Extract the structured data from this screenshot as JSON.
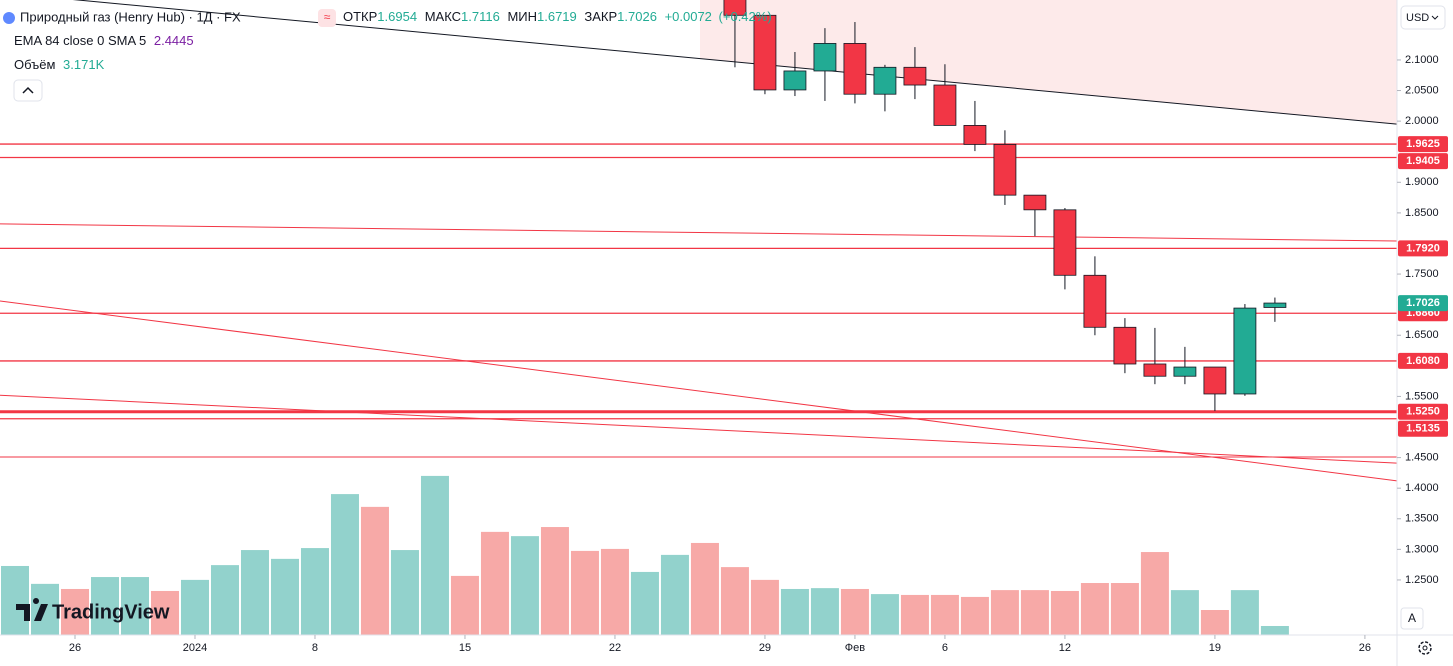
{
  "header": {
    "title": "Природный газ (Henry Hub) · 1Д · FX",
    "open_label": "ОТКР",
    "high_label": "МАКС",
    "low_label": "МИН",
    "close_label": "ЗАКР",
    "change": "+0.0072",
    "change_pct": "(+0.42%)"
  },
  "indicator": {
    "label": "EMA 84 close 0 SMA 5",
    "value": 2.4445
  },
  "volume_legend": {
    "label": "Объём",
    "value": "3.171K"
  },
  "currency": "USD",
  "auto_label": "A",
  "logo": "TradingView",
  "chart_data": {
    "type": "candlestick",
    "xlim": [
      -0.5,
      46.07
    ],
    "xticks": [
      {
        "value": 2,
        "label": "26"
      },
      {
        "value": 6,
        "label": "2024"
      },
      {
        "value": 10,
        "label": "8"
      },
      {
        "value": 15,
        "label": "15"
      },
      {
        "value": 20,
        "label": "22"
      },
      {
        "value": 25,
        "label": "29"
      },
      {
        "value": 28,
        "label": "Фев"
      },
      {
        "value": 31,
        "label": "6"
      },
      {
        "value": 35,
        "label": "12"
      },
      {
        "value": 40,
        "label": "19"
      },
      {
        "value": 45,
        "label": "26"
      }
    ],
    "ylim": [
      1.16,
      2.198
    ],
    "yticks": [
      {
        "value": 2.1,
        "label": "2.1000"
      },
      {
        "value": 2.05,
        "label": "2.0500"
      },
      {
        "value": 2.0,
        "label": "2.0000"
      },
      {
        "value": 1.9,
        "label": "1.9000"
      },
      {
        "value": 1.85,
        "label": "1.8500"
      },
      {
        "value": 1.75,
        "label": "1.7500"
      },
      {
        "value": 1.65,
        "label": "1.6500"
      },
      {
        "value": 1.55,
        "label": "1.5500"
      },
      {
        "value": 1.45,
        "label": "1.4500"
      },
      {
        "value": 1.4,
        "label": "1.4000"
      },
      {
        "value": 1.35,
        "label": "1.3500"
      },
      {
        "value": 1.3,
        "label": "1.3000"
      },
      {
        "value": 1.25,
        "label": "1.2500"
      }
    ],
    "up_color": "#22ab94",
    "down_color": "#f23645",
    "volume_up_color": "#92d2cc",
    "volume_down_color": "#f7a9a7",
    "level_color": "#f23645",
    "candles": {
      "x": [
        24,
        25,
        26,
        27,
        28,
        29,
        30,
        31,
        32,
        33,
        34,
        35,
        36,
        37,
        38,
        39,
        40,
        41,
        42
      ],
      "open": [
        2.22,
        2.173,
        2.051,
        2.082,
        2.127,
        2.044,
        2.088,
        2.059,
        1.993,
        1.962,
        1.879,
        1.855,
        1.748,
        1.663,
        1.603,
        1.583,
        1.598,
        1.554,
        1.6954
      ],
      "high": [
        2.25,
        2.173,
        2.113,
        2.152,
        2.162,
        2.092,
        2.121,
        2.093,
        2.033,
        1.985,
        1.879,
        1.858,
        1.779,
        1.678,
        1.662,
        1.631,
        1.598,
        1.701,
        1.7116
      ],
      "low": [
        2.088,
        2.044,
        2.041,
        2.033,
        2.029,
        2.016,
        2.036,
        1.993,
        1.951,
        1.863,
        1.812,
        1.725,
        1.65,
        1.588,
        1.57,
        1.57,
        1.526,
        1.551,
        1.6719
      ],
      "close": [
        2.173,
        2.051,
        2.082,
        2.127,
        2.044,
        2.088,
        2.059,
        1.993,
        1.962,
        1.879,
        1.855,
        1.748,
        1.663,
        1.603,
        1.583,
        1.598,
        1.554,
        1.6944,
        1.7026
      ]
    },
    "volume": {
      "x": [
        0,
        1,
        2,
        3,
        4,
        5,
        6,
        7,
        8,
        9,
        10,
        11,
        12,
        13,
        14,
        15,
        16,
        17,
        18,
        19,
        20,
        21,
        22,
        23,
        24,
        25,
        26,
        27,
        28,
        29,
        30,
        31,
        32,
        33,
        34,
        35,
        36,
        37,
        38,
        39,
        40,
        41,
        42
      ],
      "values": [
        24.3,
        18.0,
        16.2,
        20.4,
        20.4,
        15.5,
        19.4,
        24.6,
        29.9,
        26.8,
        30.6,
        49.6,
        45.1,
        29.9,
        56.0,
        20.8,
        36.3,
        34.8,
        38.0,
        29.6,
        30.3,
        22.2,
        28.2,
        32.4,
        23.9,
        19.4,
        16.2,
        16.5,
        16.2,
        14.4,
        14.1,
        14.1,
        13.4,
        15.8,
        15.8,
        15.5,
        18.3,
        18.3,
        29.2,
        15.8,
        8.8,
        15.8,
        3.171
      ],
      "direction": [
        "up",
        "up",
        "down",
        "up",
        "up",
        "down",
        "up",
        "up",
        "up",
        "up",
        "up",
        "up",
        "down",
        "up",
        "up",
        "down",
        "down",
        "up",
        "down",
        "down",
        "down",
        "up",
        "up",
        "down",
        "down",
        "down",
        "up",
        "up",
        "down",
        "up",
        "down",
        "down",
        "down",
        "down",
        "down",
        "down",
        "down",
        "down",
        "down",
        "up",
        "down",
        "up",
        "up"
      ]
    },
    "levels": [
      1.9625,
      1.9405,
      {
        "value": 1.792,
        "label": "1.7920"
      },
      {
        "value": 1.686,
        "label": "1.6860"
      },
      {
        "value": 1.608,
        "label": "1.6080"
      },
      {
        "value": 1.525,
        "label": "1.5250"
      },
      1.5135
    ],
    "trendlines": [
      {
        "from": [
          -0.5,
          2.21
        ],
        "to": [
          46.07,
          1.995
        ],
        "color": "#131722"
      },
      {
        "from": [
          -0.5,
          1.832
        ],
        "to": [
          46.07,
          1.804
        ],
        "color": "#f23645"
      },
      {
        "from": [
          -0.5,
          1.706
        ],
        "to": [
          46.07,
          1.412
        ],
        "color": "#f23645"
      },
      {
        "from": [
          -0.5,
          1.552
        ],
        "to": [
          46.07,
          1.441
        ],
        "color": "#f23645"
      },
      {
        "from": [
          -0.5,
          1.451
        ],
        "to": [
          46.07,
          1.451
        ],
        "color": "#f23645"
      }
    ]
  }
}
